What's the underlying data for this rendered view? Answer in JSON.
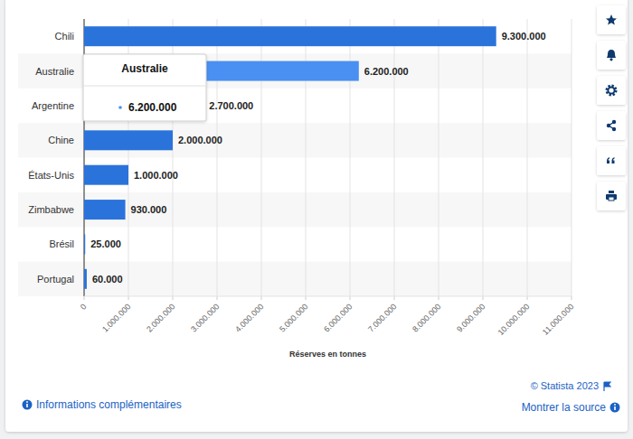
{
  "chart_data": {
    "type": "bar",
    "orientation": "horizontal",
    "categories": [
      "Chili",
      "Australie",
      "Argentine",
      "Chine",
      "États-Unis",
      "Zimbabwe",
      "Brésil",
      "Portugal"
    ],
    "values": [
      9300000,
      6200000,
      2700000,
      2000000,
      1000000,
      930000,
      25000,
      60000
    ],
    "value_labels": [
      "9.300.000",
      "6.200.000",
      "2.700.000",
      "2.000.000",
      "1.000.000",
      "930.000",
      "25.000",
      "60.000"
    ],
    "color": "#2a73db",
    "colors": [
      "#2a73db",
      "#4a8ff2",
      "#2a73db",
      "#2a73db",
      "#2a73db",
      "#2a73db",
      "#2a73db",
      "#2a73db"
    ],
    "xlabel": "Réserves en tonnes",
    "xlim": [
      0,
      11000000
    ],
    "xticks": [
      0,
      {
        "value": 1000000,
        "label": "1.000.000"
      },
      {
        "value": 2000000,
        "label": "2.000.000"
      },
      {
        "value": 3000000,
        "label": "3.000.000"
      },
      {
        "value": 4000000,
        "label": "4.000.000"
      },
      {
        "value": 5000000,
        "label": "5.000.000"
      },
      {
        "value": 6000000,
        "label": "6.000.000"
      },
      {
        "value": 7000000,
        "label": "7.000.000"
      },
      {
        "value": 8000000,
        "label": "8.000.000"
      },
      {
        "value": 9000000,
        "label": "9.000.000"
      },
      {
        "value": 10000000,
        "label": "10.000.000"
      },
      {
        "value": 11000000,
        "label": "11.000.000"
      }
    ],
    "grid": true,
    "data_labels": true
  },
  "footer": {
    "credit": "© Statista 2023",
    "info": "Informations complémentaires",
    "source": "Montrer la source"
  }
}
